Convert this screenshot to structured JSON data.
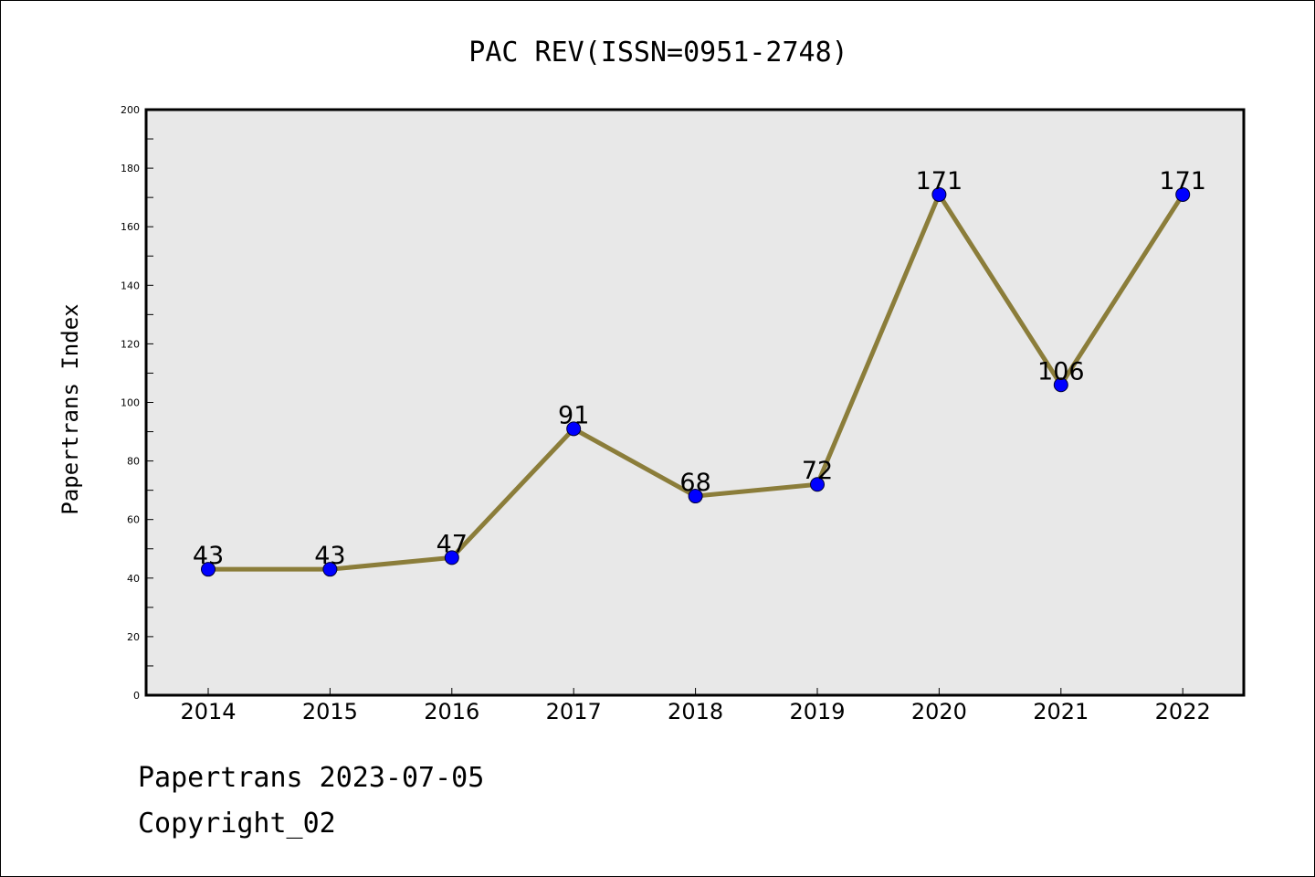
{
  "chart_data": {
    "type": "line",
    "title": "PAC REV(ISSN=0951-2748)",
    "ylabel": "Papertrans Index",
    "xlabel": "",
    "categories": [
      "2014",
      "2015",
      "2016",
      "2017",
      "2018",
      "2019",
      "2020",
      "2021",
      "2022"
    ],
    "series": [
      {
        "values": [
          43,
          43,
          47,
          91,
          68,
          72,
          171,
          106,
          171
        ]
      }
    ],
    "ylim": [
      0,
      200
    ],
    "yticks": [
      0,
      20,
      40,
      60,
      80,
      100,
      120,
      140,
      160,
      180,
      200
    ],
    "grid": false,
    "plot_background": "#e8e8e8",
    "line_color": "#8b7d3a",
    "marker_color": "#0000ff"
  },
  "footer": {
    "line1": "Papertrans 2023-07-05",
    "line2": "Copyright_02"
  }
}
